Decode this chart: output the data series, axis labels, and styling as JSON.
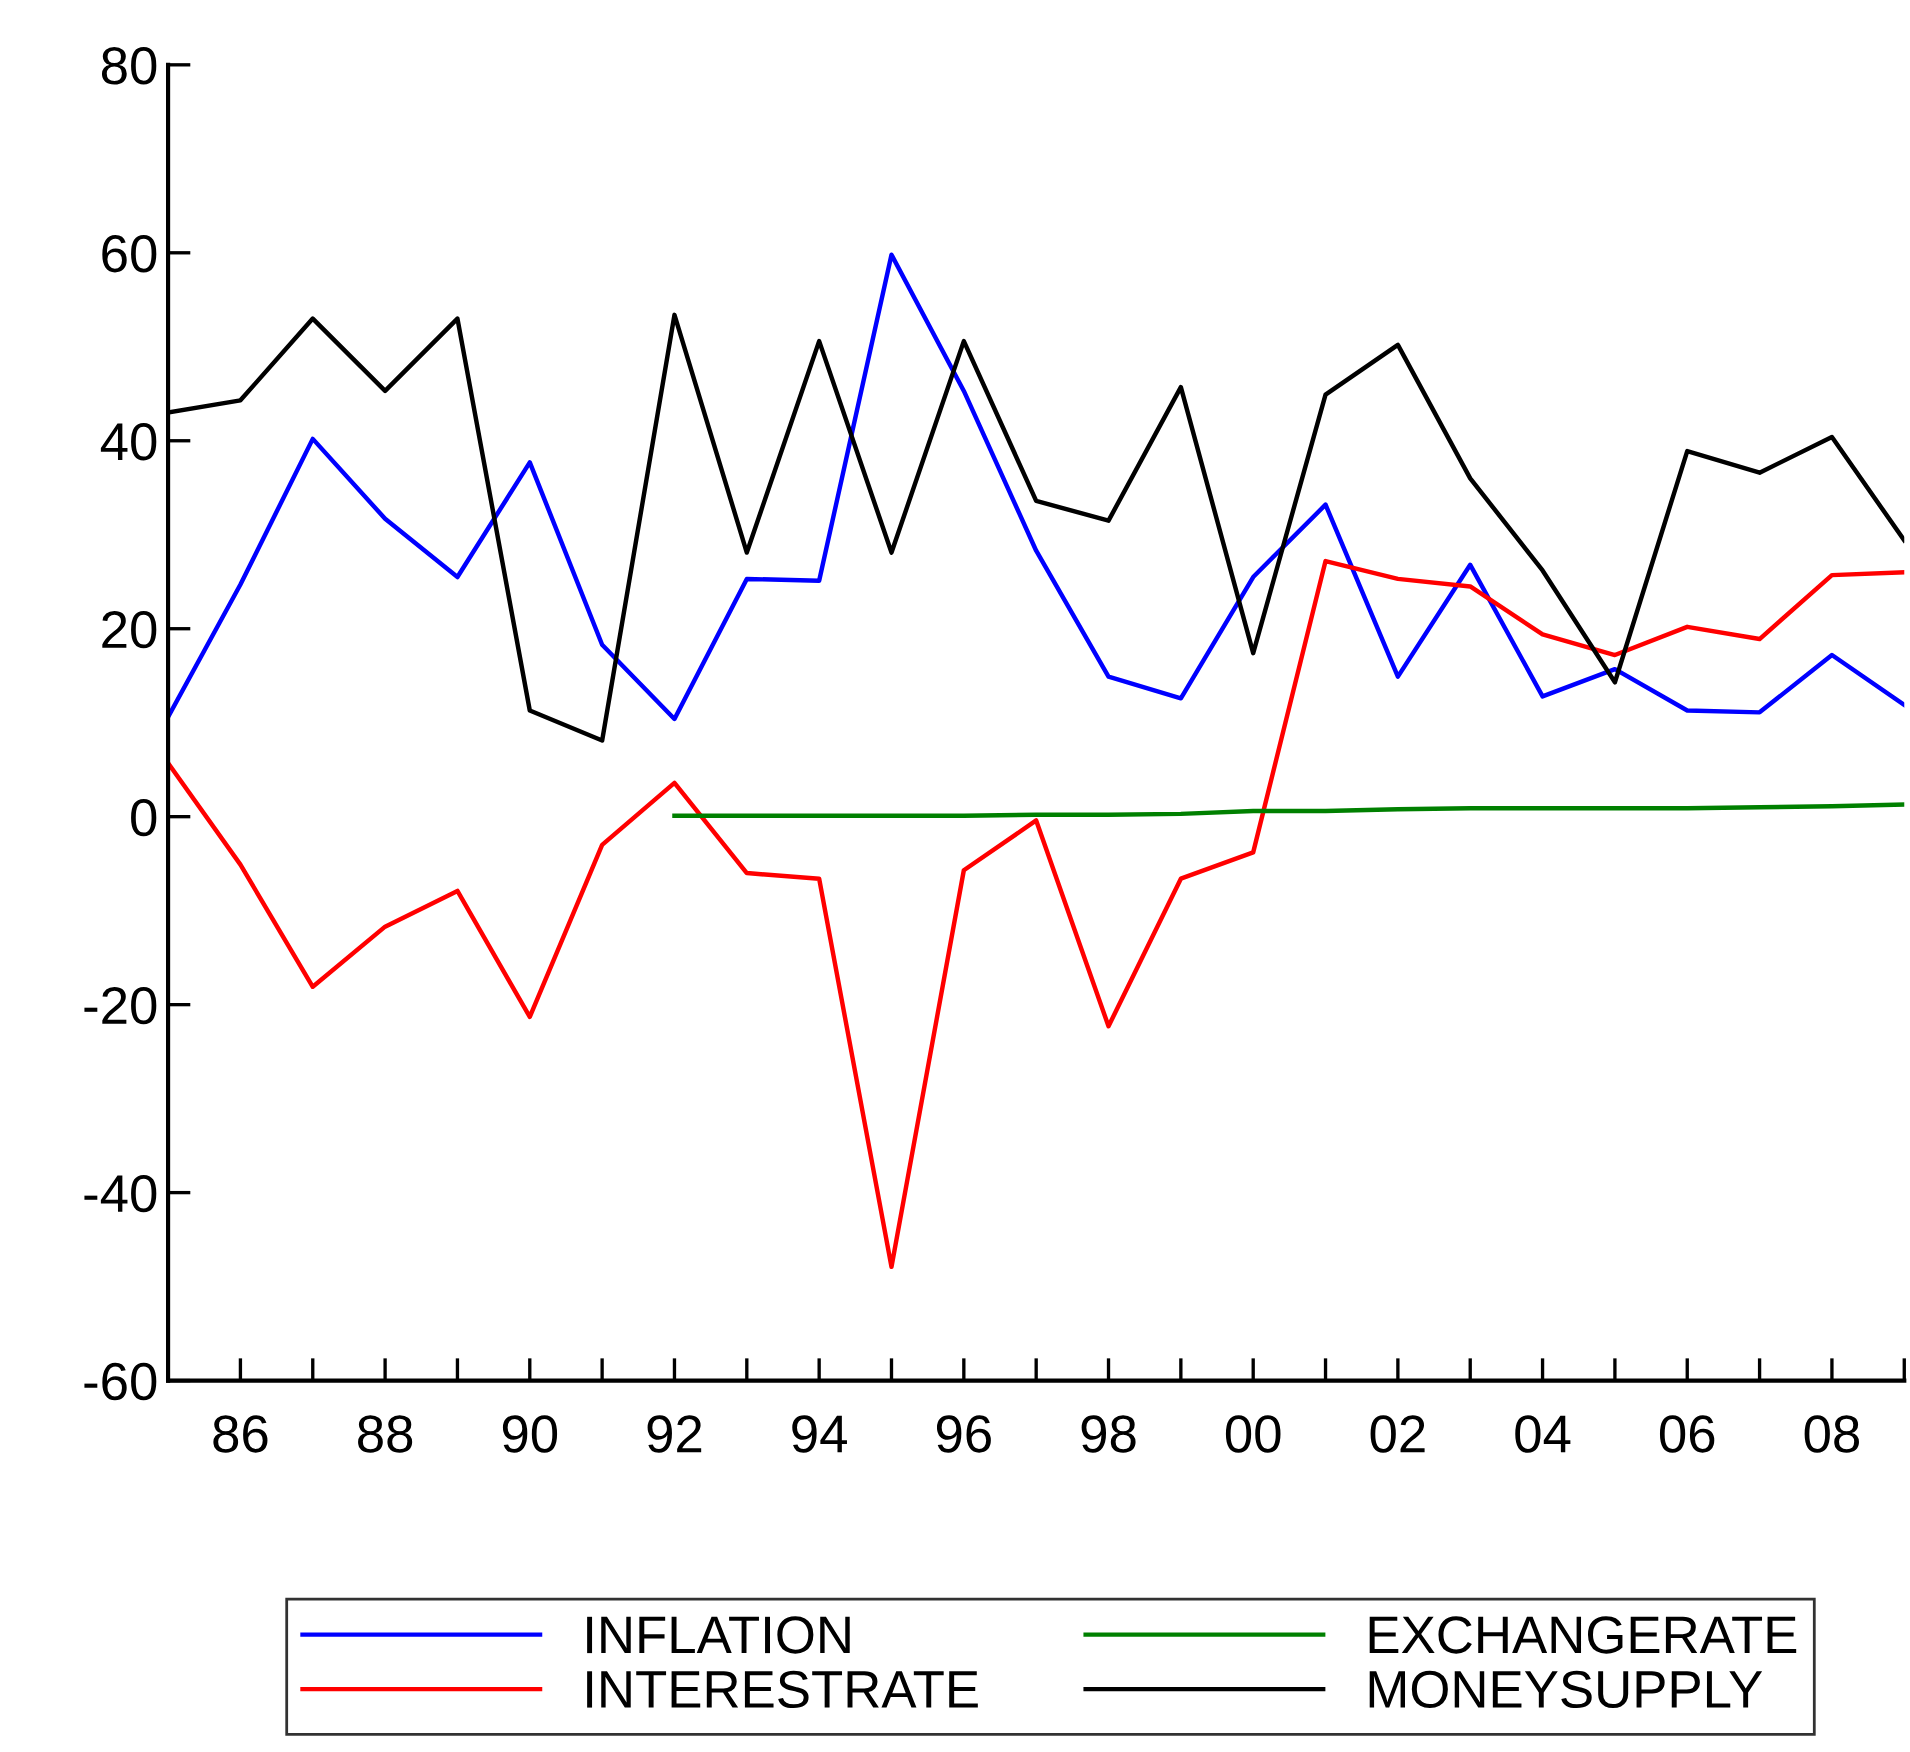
{
  "chart_data": {
    "type": "line",
    "x": [
      1985,
      1986,
      1987,
      1988,
      1989,
      1990,
      1991,
      1992,
      1993,
      1994,
      1995,
      1996,
      1997,
      1998,
      1999,
      2000,
      2001,
      2002,
      2003,
      2004,
      2005,
      2006,
      2007,
      2008,
      2009
    ],
    "series": [
      {
        "name": "INFLATION",
        "color": "#0000ff",
        "values": [
          10.6,
          24.7,
          40.2,
          31.7,
          25.5,
          37.7,
          18.3,
          10.4,
          25.3,
          25.1,
          59.8,
          45.3,
          28.3,
          14.9,
          12.6,
          25.5,
          33.2,
          14.9,
          26.8,
          12.8,
          15.7,
          11.3,
          11.1,
          17.2,
          11.9
        ]
      },
      {
        "name": "INTERESTRATE",
        "color": "#ff0000",
        "values": [
          5.7,
          -5.1,
          -18.1,
          -11.7,
          -7.9,
          -21.3,
          -3,
          3.6,
          -6,
          -6.6,
          -47.9,
          -5.7,
          -0.4,
          -22.3,
          -6.6,
          -3.8,
          27.2,
          25.3,
          24.5,
          19.4,
          17.2,
          20.2,
          18.9,
          25.7,
          26
        ]
      },
      {
        "name": "EXCHANGERATE",
        "color": "#008000",
        "values": [
          null,
          null,
          null,
          null,
          null,
          null,
          null,
          0.1,
          0.1,
          0.1,
          0.1,
          0.1,
          0.2,
          0.2,
          0.3,
          0.6,
          0.6,
          0.8,
          0.9,
          0.9,
          0.9,
          0.9,
          1.0,
          1.1,
          1.3
        ]
      },
      {
        "name": "MONEYSUPPLY",
        "color": "#000000",
        "values": [
          43,
          44.3,
          53,
          45.3,
          53,
          11.3,
          8.1,
          53.4,
          28.1,
          50.6,
          28.1,
          50.6,
          33.6,
          31.5,
          45.7,
          17.4,
          44.9,
          50.2,
          36,
          26.2,
          14.3,
          38.9,
          36.6,
          40.4,
          29.4
        ]
      }
    ],
    "xlim": [
      1985,
      2009
    ],
    "xticks": [
      {
        "value": 1985,
        "label": null
      },
      {
        "value": 1986,
        "label": "86"
      },
      {
        "value": 1987,
        "label": null
      },
      {
        "value": 1988,
        "label": "88"
      },
      {
        "value": 1989,
        "label": null
      },
      {
        "value": 1990,
        "label": "90"
      },
      {
        "value": 1991,
        "label": null
      },
      {
        "value": 1992,
        "label": "92"
      },
      {
        "value": 1993,
        "label": null
      },
      {
        "value": 1994,
        "label": "94"
      },
      {
        "value": 1995,
        "label": null
      },
      {
        "value": 1996,
        "label": "96"
      },
      {
        "value": 1997,
        "label": null
      },
      {
        "value": 1998,
        "label": "98"
      },
      {
        "value": 1999,
        "label": null
      },
      {
        "value": 2000,
        "label": "00"
      },
      {
        "value": 2001,
        "label": null
      },
      {
        "value": 2002,
        "label": "02"
      },
      {
        "value": 2003,
        "label": null
      },
      {
        "value": 2004,
        "label": "04"
      },
      {
        "value": 2005,
        "label": null
      },
      {
        "value": 2006,
        "label": "06"
      },
      {
        "value": 2007,
        "label": null
      },
      {
        "value": 2008,
        "label": "08"
      },
      {
        "value": 2009,
        "label": null
      }
    ],
    "ylim": [
      -60,
      80
    ],
    "yticks": [
      -60,
      -40,
      -20,
      0,
      20,
      40,
      60,
      80
    ],
    "grid": false,
    "legend": "bottom",
    "marker": "none",
    "line_style": "solid"
  }
}
